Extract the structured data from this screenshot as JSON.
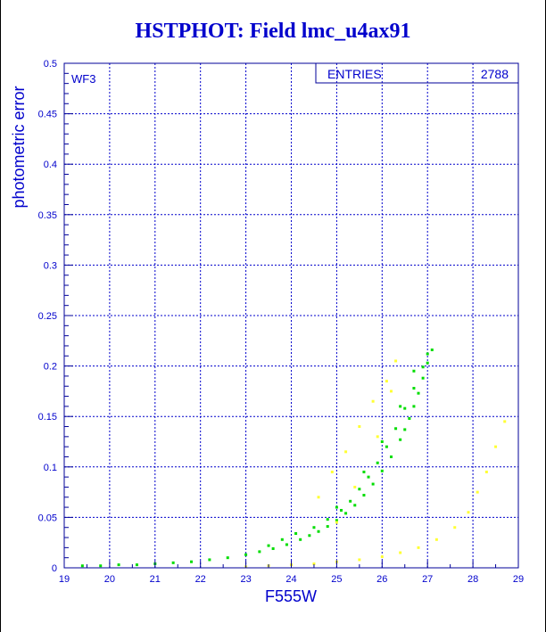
{
  "colors": {
    "frame": "#000099",
    "grid": "#0000cc",
    "text": "#0000cc",
    "title": "#0000cc",
    "background": "#ffffff"
  },
  "chart_data": {
    "type": "scatter",
    "title": "HSTPHOT: Field lmc_u4ax91",
    "xlabel": "F555W",
    "ylabel": "photometric error",
    "annotation": "WF3",
    "stats": {
      "label": "ENTRIES",
      "value": "2788"
    },
    "xlim": [
      19,
      29
    ],
    "ylim": [
      0,
      0.5
    ],
    "x_ticks": [
      19,
      20,
      21,
      22,
      23,
      24,
      25,
      26,
      27,
      28,
      29
    ],
    "y_ticks": [
      0,
      0.05,
      0.1,
      0.15,
      0.2,
      0.25,
      0.3,
      0.35,
      0.4,
      0.45,
      0.5
    ],
    "x_tick_labels": [
      "19",
      "20",
      "21",
      "22",
      "23",
      "24",
      "25",
      "26",
      "27",
      "28",
      "29"
    ],
    "y_tick_labels": [
      "0",
      "0.05",
      "0.1",
      "0.15",
      "0.2",
      "0.25",
      "0.3",
      "0.35",
      "0.4",
      "0.45",
      "0.5"
    ],
    "grid": true,
    "legend": "none",
    "series": [
      {
        "color": "#00dd00",
        "values_note_free": true,
        "x": [
          19.4,
          19.8,
          20.2,
          20.6,
          21.0,
          21.4,
          21.8,
          22.2,
          22.6,
          23.0,
          23.3,
          23.6,
          23.9,
          24.2,
          24.4,
          24.6,
          24.8,
          25.0,
          25.2,
          25.4,
          25.6,
          25.8,
          26.0,
          26.2,
          26.4,
          26.5,
          26.6,
          26.7,
          26.8,
          26.9,
          27.0,
          27.1,
          23.5,
          23.8,
          24.1,
          24.5,
          24.8,
          25.1,
          25.3,
          25.5,
          25.7,
          25.9,
          26.1,
          26.3,
          26.5,
          26.7,
          26.9,
          25.0,
          25.6,
          26.0,
          26.4,
          26.7,
          27.0
        ],
        "y": [
          0.002,
          0.002,
          0.003,
          0.003,
          0.004,
          0.005,
          0.006,
          0.008,
          0.01,
          0.013,
          0.016,
          0.019,
          0.023,
          0.028,
          0.032,
          0.036,
          0.041,
          0.047,
          0.054,
          0.062,
          0.072,
          0.083,
          0.096,
          0.11,
          0.127,
          0.137,
          0.148,
          0.16,
          0.173,
          0.188,
          0.203,
          0.216,
          0.022,
          0.028,
          0.034,
          0.04,
          0.048,
          0.057,
          0.066,
          0.078,
          0.09,
          0.104,
          0.12,
          0.138,
          0.158,
          0.178,
          0.199,
          0.06,
          0.095,
          0.125,
          0.16,
          0.195,
          0.212
        ]
      },
      {
        "color": "#ffff33",
        "x": [
          23.0,
          23.5,
          24.0,
          24.5,
          25.0,
          25.5,
          26.0,
          26.4,
          26.8,
          27.2,
          27.6,
          27.9,
          28.1,
          28.3,
          28.5,
          28.7,
          24.6,
          24.9,
          25.2,
          25.5,
          25.8,
          26.1,
          26.3,
          25.0,
          25.4,
          25.9,
          26.2
        ],
        "y": [
          0.001,
          0.002,
          0.003,
          0.004,
          0.006,
          0.008,
          0.011,
          0.015,
          0.02,
          0.028,
          0.04,
          0.055,
          0.075,
          0.095,
          0.12,
          0.145,
          0.07,
          0.095,
          0.115,
          0.14,
          0.165,
          0.185,
          0.205,
          0.045,
          0.08,
          0.13,
          0.175
        ]
      }
    ]
  }
}
